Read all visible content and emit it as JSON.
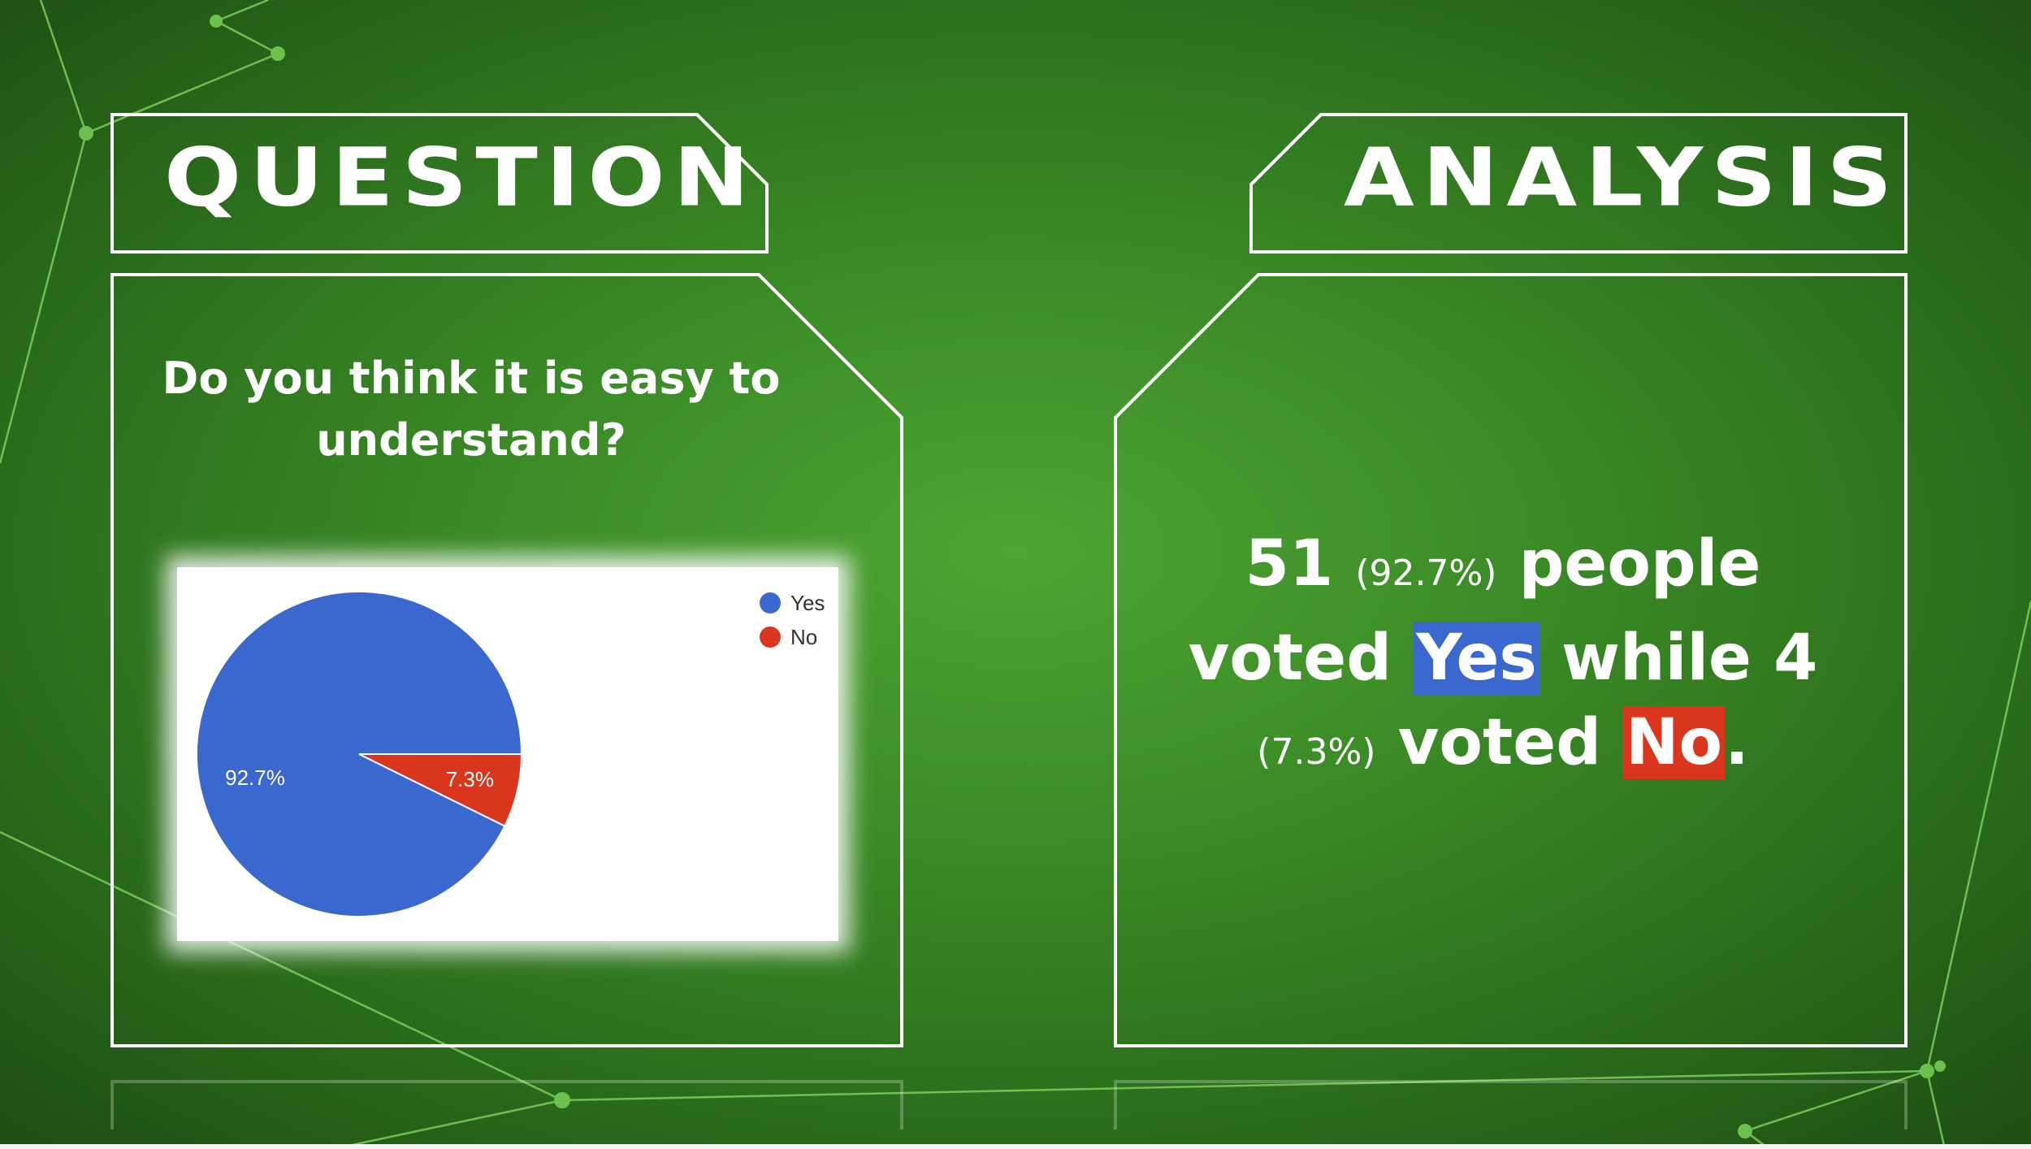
{
  "slide": {
    "question_heading": "QUESTION",
    "analysis_heading": "ANALYSIS",
    "question_text": "Do you think it is easy to understand?",
    "analysis": {
      "yes_count": "51",
      "yes_pct": "(92.7%)",
      "word_people": "people",
      "word_voted_1": "voted",
      "yes_label": "Yes",
      "word_while": "while",
      "no_count": "4",
      "no_pct": "(7.3%)",
      "word_voted_2": "voted",
      "no_label": "No",
      "period": "."
    }
  },
  "colors": {
    "yes": "#3a68cf",
    "no": "#d9361d",
    "frame": "#ffffff"
  },
  "chart_data": {
    "type": "pie",
    "categories": [
      "Yes",
      "No"
    ],
    "values": [
      92.7,
      7.3
    ],
    "data_labels": [
      "92.7%",
      "7.3%"
    ],
    "colors": [
      "#3a68cf",
      "#d9361d"
    ],
    "legend_position": "top-right",
    "start_angle_deg": 0,
    "direction": "counterclockwise"
  }
}
